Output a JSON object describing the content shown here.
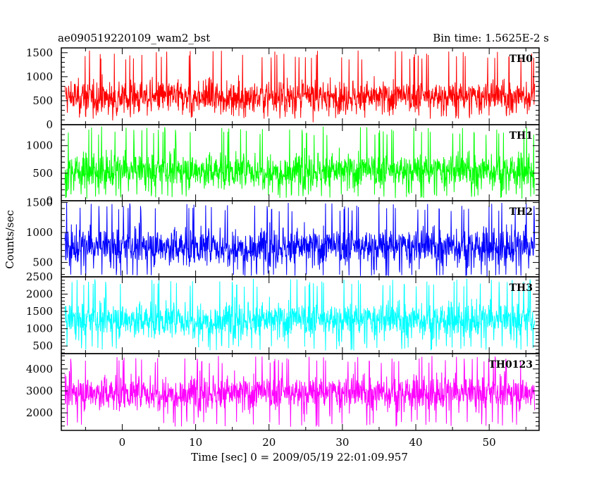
{
  "header": {
    "left": "ae090519220109_wam2_bst",
    "right": "Bin time: 1.5625E-2 s"
  },
  "chart_data": {
    "type": "line",
    "title": "ae090519220109_wam2_bst",
    "subtitle": "Bin time: 1.5625E-2 s",
    "xlabel": "Time [sec] 0 = 2009/05/19 22:01:09.957",
    "ylabel": "Counts/sec",
    "xlim": [
      -8.3,
      56.8
    ],
    "x_ticks": [
      0,
      10,
      20,
      30,
      40,
      50
    ],
    "x_range_data": [
      -7.8,
      56.2
    ],
    "grid": false,
    "panels": [
      {
        "name": "TH0",
        "color": "#ff0000",
        "ylim": [
          0,
          1600
        ],
        "y_ticks": [
          0,
          500,
          1000,
          1500
        ],
        "approx_baseline": 300,
        "approx_mean": 580,
        "approx_spike_max": 1550
      },
      {
        "name": "TH1",
        "color": "#00ff00",
        "ylim": [
          0,
          1380
        ],
        "y_ticks": [
          0,
          500,
          1000
        ],
        "approx_baseline": 120,
        "approx_mean": 540,
        "approx_spike_max": 1350
      },
      {
        "name": "TH2",
        "color": "#0000ff",
        "ylim": [
          260,
          1530
        ],
        "y_ticks": [
          500,
          1000,
          1500
        ],
        "approx_baseline": 300,
        "approx_mean": 760,
        "approx_spike_max": 1500
      },
      {
        "name": "TH3",
        "color": "#00ffff",
        "ylim": [
          280,
          2500
        ],
        "y_ticks": [
          500,
          1000,
          1500,
          2000,
          2500
        ],
        "approx_baseline": 500,
        "approx_mean": 1250,
        "approx_spike_max": 2450
      },
      {
        "name": "TH0123",
        "color": "#ff00ff",
        "ylim": [
          1200,
          4700
        ],
        "y_ticks": [
          2000,
          3000,
          4000
        ],
        "approx_baseline": 1600,
        "approx_mean": 2900,
        "approx_spike_max": 4600
      }
    ]
  }
}
